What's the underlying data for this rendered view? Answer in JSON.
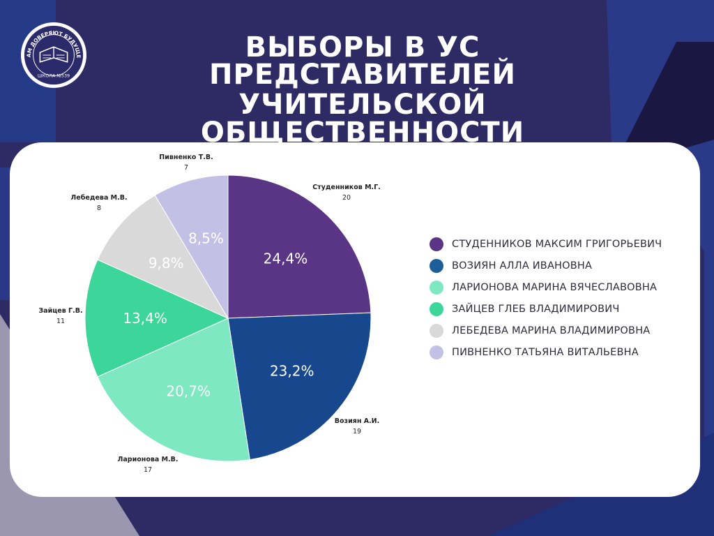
{
  "title_lines": [
    "ВЫБОРЫ В УС",
    "ПРЕДСТАВИТЕЛЕЙ",
    "УЧИТЕЛЬСКОЙ ОБЩЕСТВЕННОСТИ"
  ],
  "logo": {
    "arc_text": "НАМ ДОВЕРЯЮТ БУДУЩЕЕ",
    "bottom_text": "ШКОЛА №539"
  },
  "colors": {
    "background": "#2e2a63",
    "card": "#ffffff",
    "title": "#ffffff"
  },
  "chart_data": {
    "type": "pie",
    "labels": [
      "Студенников М.Г.",
      "Возиян А.И.",
      "Ларионова М.В.",
      "Зайцев Г.В.",
      "Лебедева М.В.",
      "Пивненко Т.В."
    ],
    "values": [
      20,
      19,
      17,
      11,
      8,
      7
    ],
    "percent_labels": [
      "24,4%",
      "23,2%",
      "20,7%",
      "13,4%",
      "9,8%",
      "8,5%"
    ],
    "colors": [
      "#5a3585",
      "#17488e",
      "#7ee8c2",
      "#3cd69a",
      "#d9d9d9",
      "#c3c0e6"
    ],
    "legend": {
      "position": "right",
      "items": [
        "СТУДЕННИКОВ МАКСИМ ГРИГОРЬЕВИЧ",
        "ВОЗИЯН АЛЛА ИВАНОВНА",
        "ЛАРИОНОВА МАРИНА ВЯЧЕСЛАВОВНА",
        "ЗАЙЦЕВ ГЛЕБ ВЛАДИМИРОВИЧ",
        "ЛЕБЕДЕВА МАРИНА ВЛАДИМИРОВНА",
        "ПИВНЕНКО ТАТЬЯНА ВИТАЛЬЕВНА"
      ],
      "colors": [
        "#5a3585",
        "#1b5e98",
        "#7ee8c2",
        "#3cd69a",
        "#d9d9d9",
        "#c3c0e6"
      ]
    }
  }
}
